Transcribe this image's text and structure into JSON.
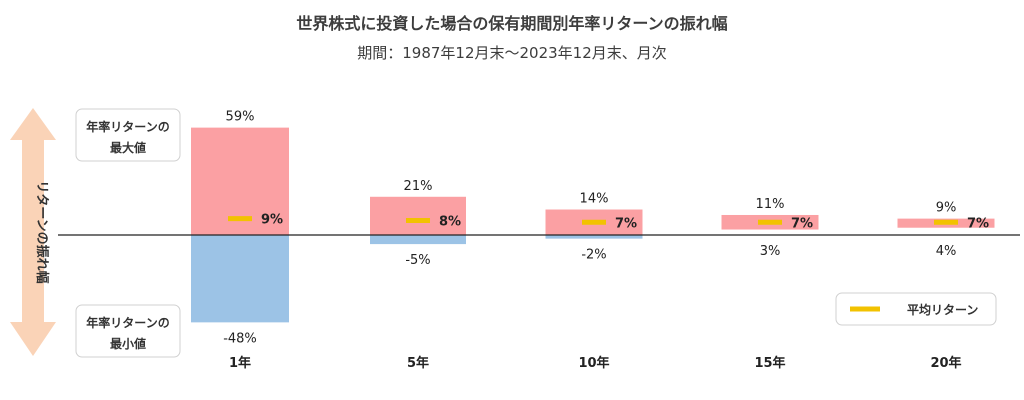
{
  "title": "世界株式に投資した場合の保有期間別年率リターンの振れ幅",
  "subtitle": "期間：1987年12月末～2023年12月末、月次",
  "side_label": "リターンの振れ幅",
  "max_box": [
    "年率リターンの",
    "最大値"
  ],
  "min_box": [
    "年率リターンの",
    "最小値"
  ],
  "legend_label": "平均リターン",
  "colors": {
    "max": "#fba0a3",
    "min": "#9cc3e6",
    "avg": "#f2c200",
    "arrow": "#fad3b7"
  },
  "chart_data": {
    "type": "bar",
    "categories": [
      "1年",
      "5年",
      "10年",
      "15年",
      "20年"
    ],
    "series": [
      {
        "name": "年率リターンの最大値",
        "values": [
          59,
          21,
          14,
          11,
          9
        ]
      },
      {
        "name": "年率リターンの最小値",
        "values": [
          -48,
          -5,
          -2,
          3,
          4
        ]
      },
      {
        "name": "平均リターン",
        "values": [
          9,
          8,
          7,
          7,
          7
        ]
      }
    ],
    "value_labels": {
      "max": [
        "59%",
        "21%",
        "14%",
        "11%",
        "9%"
      ],
      "min": [
        "-48%",
        "-5%",
        "-2%",
        "3%",
        "4%"
      ],
      "avg": [
        "9%",
        "8%",
        "7%",
        "7%",
        "7%"
      ]
    }
  }
}
